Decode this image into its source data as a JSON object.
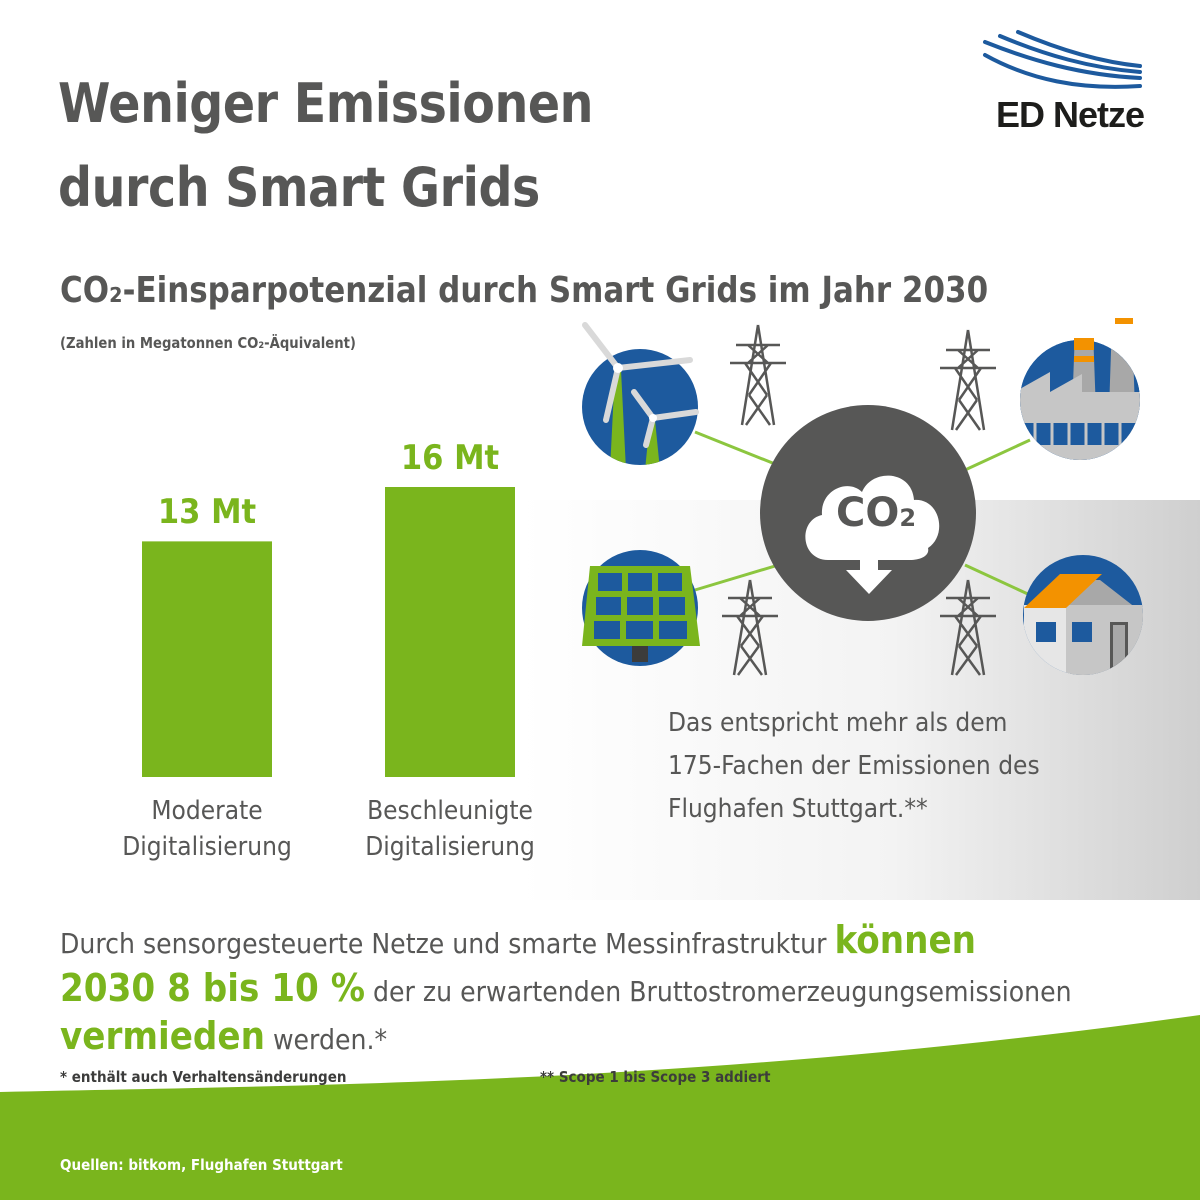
{
  "header": {
    "title_line1": "Weniger Emissionen",
    "title_line2": "durch Smart Grids",
    "logo_text": "ED Netze"
  },
  "chart_data": {
    "type": "bar",
    "title": "CO₂-Einsparpotenzial durch Smart Grids im Jahr 2030",
    "subtitle": "(Zahlen in Megatonnen CO₂-Äquivalent)",
    "categories": [
      [
        "Moderate",
        "Digitalisierung"
      ],
      [
        "Beschleunigte",
        "Digitalisierung"
      ]
    ],
    "values": [
      13,
      16
    ],
    "value_labels": [
      "13 Mt",
      "16 Mt"
    ],
    "unit": "Mt",
    "ylim": [
      0,
      16
    ],
    "grid": false,
    "color": "#7ab51d"
  },
  "graphic": {
    "co2_label": "CO",
    "co2_sub": "2"
  },
  "info": {
    "line1": "Das entspricht mehr als dem",
    "line2": "175-Fachen der Emissionen des",
    "line3": "Flughafen Stuttgart.**"
  },
  "body": {
    "part1": "Durch sensorgesteuerte Netze und smarte Messinfrastruktur ",
    "hl1": "können",
    "hl2": "2030 8 bis 10 %",
    "part2": " der zu erwartenden Bruttostromerzeugungsemissionen",
    "hl3": "vermieden",
    "part3": " werden.*"
  },
  "footnotes": {
    "note1": "* enthält auch Verhaltensänderungen",
    "note2": "**  Scope 1 bis Scope 3 addiert"
  },
  "footer": {
    "sources": "Quellen: bitkom, Flughafen Stuttgart"
  },
  "colors": {
    "green": "#7ab51d",
    "gray_text": "#575756",
    "dark_circle": "#575756",
    "blue": "#1d5a9e"
  }
}
